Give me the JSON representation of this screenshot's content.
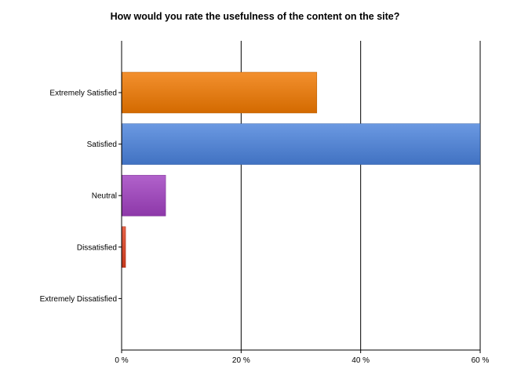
{
  "chart_data": {
    "type": "bar",
    "orientation": "horizontal",
    "title": "How would you rate the usefulness of the content on the site?",
    "categories": [
      "Extremely Satisfied",
      "Satisfied",
      "Neutral",
      "Dissatisfied",
      "Extremely Dissatisfied"
    ],
    "values": [
      32.6,
      59.9,
      7.3,
      0.6,
      0
    ],
    "colors": [
      "#f07800",
      "#4a82dc",
      "#a040c0",
      "#e04020",
      "#888888"
    ],
    "xlim": [
      0,
      60
    ],
    "xticks": [
      0,
      20,
      40,
      60
    ],
    "tick_labels": [
      "0 %",
      "20 %",
      "40 %",
      "60 %"
    ],
    "grid": true,
    "legend": "none"
  }
}
